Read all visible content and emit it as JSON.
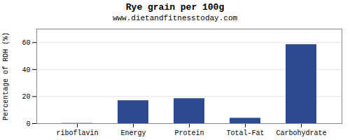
{
  "chart_data": {
    "type": "bar",
    "title": "Rye grain per 100g",
    "subtitle": "www.dietandfitnesstoday.com",
    "categories": [
      "riboflavin",
      "Energy",
      "Protein",
      "Total-Fat",
      "Carbohydrate"
    ],
    "values": [
      0.17,
      17.0,
      18.5,
      4.0,
      58.5
    ],
    "color": "#2e4a8e",
    "ylabel": "Percentage of RDH (%)",
    "ylim": [
      0,
      70
    ],
    "yticks": [
      0,
      20,
      40,
      60
    ],
    "grid": true
  }
}
